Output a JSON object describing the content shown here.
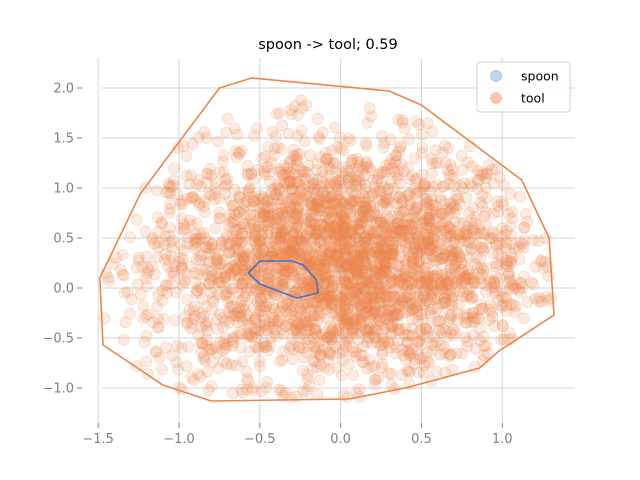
{
  "chart_data": {
    "type": "scatter",
    "title": "spoon -> tool; 0.59",
    "xlabel": "",
    "ylabel": "",
    "xlim": [
      -1.6,
      1.45
    ],
    "ylim": [
      -1.35,
      2.3
    ],
    "grid": true,
    "legend_position": "top-right",
    "x_ticks": [
      -1.5,
      -1.0,
      -0.5,
      0.0,
      0.5,
      1.0
    ],
    "x_tick_labels": [
      "−1.5",
      "−1.0",
      "−0.5",
      "0.0",
      "0.5",
      "1.0"
    ],
    "y_ticks": [
      -1.0,
      -0.5,
      0.0,
      0.5,
      1.0,
      1.5,
      2.0
    ],
    "y_tick_labels": [
      "−1.0",
      "−0.5",
      "0.0",
      "0.5",
      "1.0",
      "1.5",
      "2.0"
    ],
    "series": [
      {
        "name": "spoon",
        "color": "#4472c4",
        "marker_fill": "#c5d3ee",
        "hull": [
          [
            -0.57,
            0.15
          ],
          [
            -0.5,
            0.27
          ],
          [
            -0.3,
            0.27
          ],
          [
            -0.23,
            0.23
          ],
          [
            -0.15,
            0.08
          ],
          [
            -0.14,
            -0.05
          ],
          [
            -0.27,
            -0.1
          ],
          [
            -0.5,
            0.04
          ]
        ]
      },
      {
        "name": "tool",
        "color": "#ed8548",
        "marker_fill": "#f7c8a9",
        "hull": [
          [
            -0.75,
            2.0
          ],
          [
            -0.55,
            2.1
          ],
          [
            0.3,
            1.97
          ],
          [
            0.5,
            1.83
          ],
          [
            1.12,
            1.08
          ],
          [
            1.29,
            0.5
          ],
          [
            1.32,
            -0.27
          ],
          [
            0.98,
            -0.63
          ],
          [
            0.86,
            -0.8
          ],
          [
            0.4,
            -1.0
          ],
          [
            0.05,
            -1.11
          ],
          [
            -0.8,
            -1.13
          ],
          [
            -1.1,
            -0.97
          ],
          [
            -1.47,
            -0.57
          ],
          [
            -1.49,
            0.1
          ],
          [
            -1.24,
            0.94
          ]
        ],
        "cloud": {
          "count": 3000,
          "center": [
            0.0,
            0.25
          ],
          "spread": [
            0.6,
            0.6
          ]
        }
      }
    ]
  }
}
